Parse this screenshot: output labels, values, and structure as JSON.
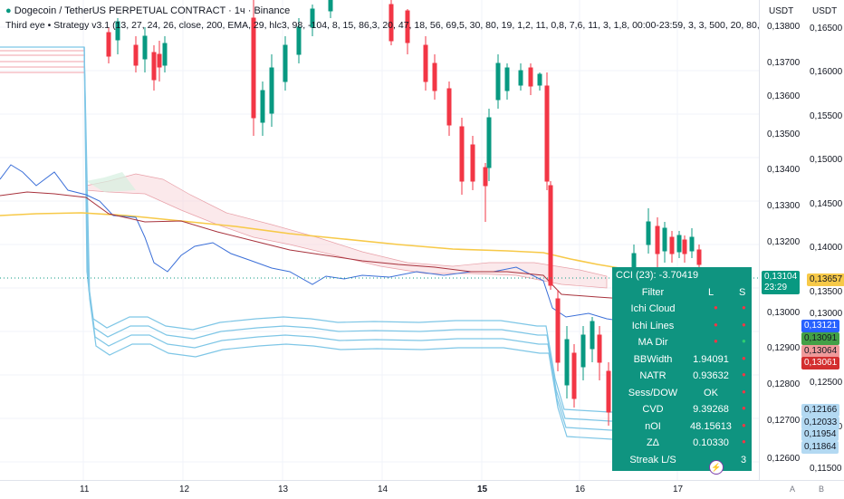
{
  "header": {
    "title": "Dogecoin / TetherUS PERPETUAL CONTRACT · 1ч · Binance",
    "indicator": "Third eye • Strategy v3.1 (13, 27, 24, 26, close, 200, EMA, 29, hlc3, 98, -104, 8, 15, 86,3, 20, 47, 18, 56, 69,5, 30, 80, 19, 1,2, 11, 0,8, 7,6, 11, 3, 1,8, 00:00-23:59, 3, 3, 500, 20, 80, 20, 80, 20, 5"
  },
  "price_axis": {
    "left_header": "USDT",
    "right_header": "USDT",
    "left_ticks": [
      "0,13800",
      "0,13700",
      "0,13600",
      "0,13500",
      "0,13400",
      "0,13300",
      "0,13200",
      "0,13000",
      "0,12900",
      "0,12800",
      "0,12700",
      "0,12600"
    ],
    "right_ticks": [
      "0,16500",
      "0,16000",
      "0,15500",
      "0,15000",
      "0,14500",
      "0,14000",
      "0,13500",
      "0,13000",
      "0,12500",
      "0,12000",
      "0,11500"
    ],
    "current_price": "0,13104",
    "countdown": "23:29",
    "right_current": "0,13657",
    "tags_left": [
      {
        "label": "0,13121",
        "color": "#2962ff"
      },
      {
        "label": "0,13091",
        "color": "#43a047"
      },
      {
        "label": "0,13064",
        "color": "#ef9a9a"
      },
      {
        "label": "0,13061",
        "color": "#d32f2f"
      }
    ],
    "tags_right": [
      {
        "label": "0,12166"
      },
      {
        "label": "0,12033"
      },
      {
        "label": "0,11954"
      },
      {
        "label": "0,11864"
      }
    ]
  },
  "time_axis": {
    "labels": [
      "11",
      "12",
      "13",
      "14",
      "15",
      "16",
      "17"
    ],
    "bold_label": "15",
    "corner_a": "A",
    "corner_b": "B"
  },
  "panel": {
    "title": "CCI (23): -3.70419",
    "header": {
      "name": "Filter",
      "long": "L",
      "short": "S"
    },
    "rows": [
      {
        "name": "Ichi Cloud",
        "value": ""
      },
      {
        "name": "Ichi Lines",
        "value": ""
      },
      {
        "name": "MA Dir",
        "value": ""
      },
      {
        "name": "BBWidth",
        "value": "1.94091"
      },
      {
        "name": "NATR",
        "value": "0.93632"
      },
      {
        "name": "Sess/DOW",
        "value": "OK"
      },
      {
        "name": "CVD",
        "value": "9.39268"
      },
      {
        "name": "nOI",
        "value": "48.15613"
      },
      {
        "name": "ZΔ",
        "value": "0.10330"
      },
      {
        "name": "Streak L/S",
        "value": "",
        "short": "3"
      }
    ]
  },
  "colors": {
    "up": "#089981",
    "down": "#f23645",
    "panel": "#0f9480",
    "ema": "#f7c948",
    "bands": "#7ec6e6"
  }
}
